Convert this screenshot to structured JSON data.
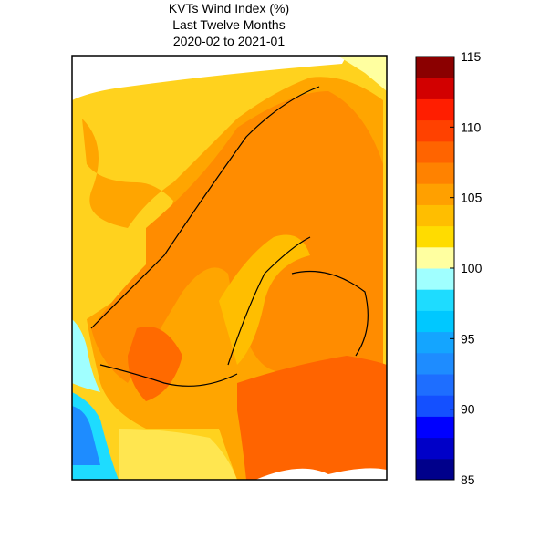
{
  "title_lines": [
    "KVTs Wind Index (%)",
    "Last Twelve Months",
    "2020-02 to 2021-01"
  ],
  "colorbar": {
    "lim": [
      85,
      115
    ],
    "ticks": [
      85,
      90,
      95,
      100,
      105,
      110,
      115
    ],
    "colors": [
      "#00008b",
      "#0000c8",
      "#0000ff",
      "#1450ff",
      "#1e6eff",
      "#1e8cff",
      "#14a5ff",
      "#00c8ff",
      "#1edcff",
      "#a0ffff",
      "#ffffa0",
      "#ffdc00",
      "#ffbe00",
      "#ffa000",
      "#ff8200",
      "#ff6400",
      "#ff4100",
      "#ff1e00",
      "#d20000",
      "#8b0000"
    ]
  }
}
